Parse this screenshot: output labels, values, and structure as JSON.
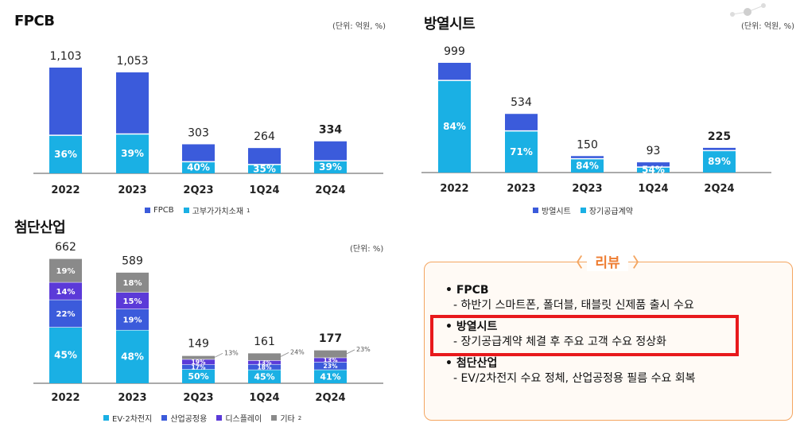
{
  "colors": {
    "blue": "#3b5bdb",
    "cyan": "#1ab0e4",
    "purple": "#5b3ad8",
    "gray": "#8a8a8a",
    "orange": "#ee7d32",
    "red": "#e8191c"
  },
  "chart_data": [
    {
      "type": "bar",
      "id": "fpcb",
      "title": "FPCB",
      "unit": "(단위: 억원, %)",
      "categories": [
        "2022",
        "2023",
        "2Q23",
        "1Q24",
        "2Q24"
      ],
      "totals": [
        1103,
        1053,
        303,
        264,
        334
      ],
      "total_labels": [
        "1,103",
        "1,053",
        "303",
        "264",
        "334"
      ],
      "share_pct": [
        36,
        39,
        40,
        35,
        39
      ],
      "share_labels": [
        "36%",
        "39%",
        "40%",
        "35%",
        "39%"
      ],
      "series": [
        {
          "name": "FPCB"
        },
        {
          "name": "고부가가치소재",
          "superscript": "1"
        }
      ]
    },
    {
      "type": "bar",
      "id": "heat",
      "title": "방열시트",
      "unit": "(단위: 억원, %)",
      "categories": [
        "2022",
        "2023",
        "2Q23",
        "1Q24",
        "2Q24"
      ],
      "totals": [
        999,
        534,
        150,
        93,
        225
      ],
      "total_labels": [
        "999",
        "534",
        "150",
        "93",
        "225"
      ],
      "share_pct": [
        84,
        71,
        84,
        54,
        89
      ],
      "share_labels": [
        "84%",
        "71%",
        "84%",
        "54%",
        "89%"
      ],
      "series": [
        {
          "name": "방열시트"
        },
        {
          "name": "장기공급계약"
        }
      ]
    },
    {
      "type": "bar",
      "id": "adv",
      "title": "첨단산업",
      "unit": "(단위: %)",
      "categories": [
        "2022",
        "2023",
        "2Q23",
        "1Q24",
        "2Q24"
      ],
      "totals": [
        662,
        589,
        149,
        161,
        177
      ],
      "total_labels": [
        "662",
        "589",
        "149",
        "161",
        "177"
      ],
      "stacks": [
        [
          45,
          22,
          14,
          19
        ],
        [
          48,
          19,
          15,
          18
        ],
        [
          50,
          17,
          19,
          13
        ],
        [
          45,
          18,
          13,
          24
        ],
        [
          41,
          23,
          13,
          23
        ]
      ],
      "stack_labels": [
        [
          "45%",
          "22%",
          "14%",
          "19%"
        ],
        [
          "48%",
          "19%",
          "15%",
          "18%"
        ],
        [
          "50%",
          "17%",
          "19%",
          "13%"
        ],
        [
          "45%",
          "18%",
          "13%",
          "24%"
        ],
        [
          "41%",
          "23%",
          "13%",
          "23%"
        ]
      ],
      "series": [
        {
          "name": "EV·2차전지"
        },
        {
          "name": "산업공정용"
        },
        {
          "name": "디스플레이"
        },
        {
          "name": "기타",
          "superscript": "2"
        }
      ]
    }
  ],
  "review": {
    "title": "리뷰",
    "items": [
      {
        "head": "• FPCB",
        "sub": "- 하반기 스마트폰, 폴더블, 태블릿 신제품 출시 수요"
      },
      {
        "head": "• 방열시트",
        "sub": "- 장기공급계약 체결 후 주요 고객 수요 정상화"
      },
      {
        "head": "• 첨단산업",
        "sub": "- EV/2차전지 수요 정체, 산업공정용 필름 수요 회복"
      }
    ]
  }
}
